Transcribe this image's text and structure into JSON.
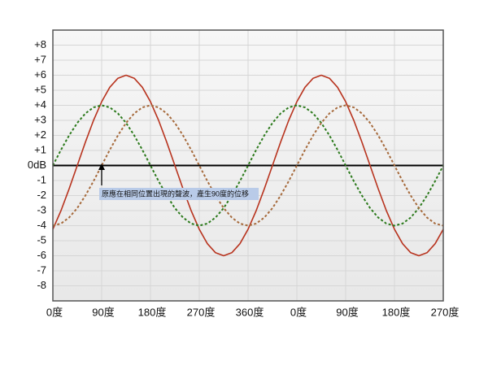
{
  "chart_data": {
    "type": "line",
    "annotation": "原應在相同位置出現的聲波，產生90度的位移",
    "x": [
      0,
      15,
      30,
      45,
      60,
      75,
      90,
      105,
      120,
      135,
      150,
      165,
      180,
      195,
      210,
      225,
      240,
      255,
      270,
      285,
      300,
      315,
      330,
      345,
      360,
      375,
      390,
      405,
      420,
      435,
      450,
      465,
      480,
      495,
      510,
      525,
      540,
      555,
      570,
      585,
      600,
      615,
      630,
      645,
      660,
      675,
      690,
      705,
      720
    ],
    "series": [
      {
        "color": "#b8341f",
        "dash": "solid",
        "values": [
          -4.24,
          -3,
          -1.55,
          0,
          1.55,
          3,
          4.24,
          5.2,
          5.8,
          6,
          5.8,
          5.2,
          4.24,
          3,
          1.55,
          0,
          -1.55,
          -3,
          -4.24,
          -5.2,
          -5.8,
          -6,
          -5.8,
          -5.2,
          -4.24,
          -3,
          -1.55,
          0,
          1.55,
          3,
          4.24,
          5.2,
          5.8,
          6,
          5.8,
          5.2,
          4.24,
          3,
          1.55,
          0,
          -1.55,
          -3,
          -4.24,
          -5.2,
          -5.8,
          -6,
          -5.8,
          -5.2,
          -4.24
        ]
      },
      {
        "color": "#2c7a1c",
        "dash": "dotted",
        "values": [
          0,
          1.04,
          2,
          2.83,
          3.46,
          3.86,
          4,
          3.86,
          3.46,
          2.83,
          2,
          1.04,
          0,
          -1.04,
          -2,
          -2.83,
          -3.46,
          -3.86,
          -4,
          -3.86,
          -3.46,
          -2.83,
          -2,
          -1.04,
          0,
          1.04,
          2,
          2.83,
          3.46,
          3.86,
          4,
          3.86,
          3.46,
          2.83,
          2,
          1.04,
          0,
          -1.04,
          -2,
          -2.83,
          -3.46,
          -3.86,
          -4,
          -3.86,
          -3.46,
          -2.83,
          -2,
          -1.04,
          0
        ]
      },
      {
        "color": "#a66a3c",
        "dash": "dotted",
        "values": [
          -4,
          -3.86,
          -3.46,
          -2.83,
          -2,
          -1.04,
          0,
          1.04,
          2,
          2.83,
          3.46,
          3.86,
          4,
          3.86,
          3.46,
          2.83,
          2,
          1.04,
          0,
          -1.04,
          -2,
          -2.83,
          -3.46,
          -3.86,
          -4,
          -3.86,
          -3.46,
          -2.83,
          -2,
          -1.04,
          0,
          1.04,
          2,
          2.83,
          3.46,
          3.86,
          4,
          3.86,
          3.46,
          2.83,
          2,
          1.04,
          0,
          -1.04,
          -2,
          -2.83,
          -3.46,
          -3.86,
          -4
        ]
      }
    ],
    "xlim": [
      0,
      720
    ],
    "xticks": [
      {
        "value": 0,
        "label": "0度"
      },
      {
        "value": 90,
        "label": "90度"
      },
      {
        "value": 180,
        "label": "180度"
      },
      {
        "value": 270,
        "label": "270度"
      },
      {
        "value": 360,
        "label": "360度"
      },
      {
        "value": 450,
        "label": "0度"
      },
      {
        "value": 540,
        "label": "90度"
      },
      {
        "value": 630,
        "label": "180度"
      },
      {
        "value": 720,
        "label": "270度"
      }
    ],
    "ylim": [
      -9,
      9
    ],
    "yticks": [
      {
        "value": 8,
        "label": "+8"
      },
      {
        "value": 7,
        "label": "+7"
      },
      {
        "value": 6,
        "label": "+6"
      },
      {
        "value": 5,
        "label": "+5"
      },
      {
        "value": 4,
        "label": "+4"
      },
      {
        "value": 3,
        "label": "+3"
      },
      {
        "value": 2,
        "label": "+2"
      },
      {
        "value": 1,
        "label": "+1"
      },
      {
        "value": 0,
        "label": "0dB"
      },
      -1,
      -2,
      -3,
      -4,
      -5,
      -6,
      -7,
      -8
    ],
    "grid": true
  }
}
